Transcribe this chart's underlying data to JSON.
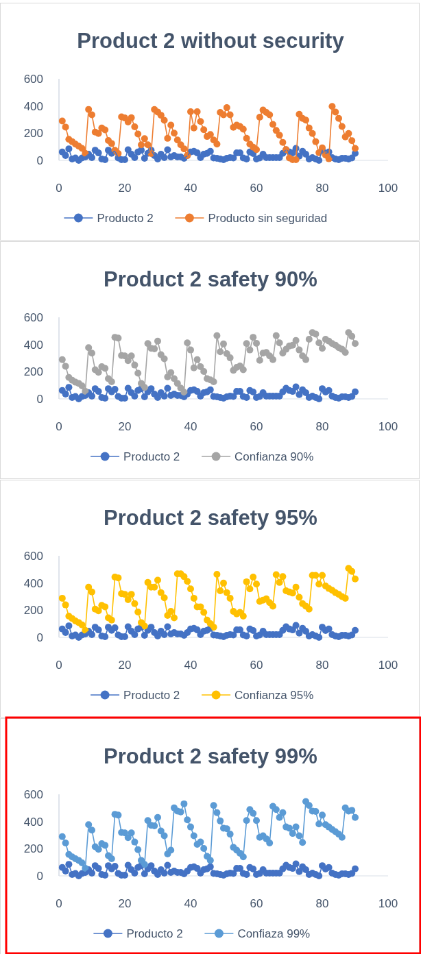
{
  "chart_data": [
    {
      "type": "line",
      "title": "Product 2 without security",
      "x": [
        1,
        2,
        3,
        4,
        5,
        6,
        7,
        8,
        9,
        10,
        11,
        12,
        13,
        14,
        15,
        16,
        17,
        18,
        19,
        20,
        21,
        22,
        23,
        24,
        25,
        26,
        27,
        28,
        29,
        30,
        31,
        32,
        33,
        34,
        35,
        36,
        37,
        38,
        39,
        40,
        41,
        42,
        43,
        44,
        45,
        46,
        47,
        48,
        49,
        50,
        51,
        52,
        53,
        54,
        55,
        56,
        57,
        58,
        59,
        60,
        61,
        62,
        63,
        64,
        65,
        66,
        67,
        68,
        69,
        70,
        71,
        72,
        73,
        74,
        75,
        76,
        77,
        78,
        79,
        80,
        81,
        82,
        83,
        84,
        85,
        86,
        87,
        88,
        89,
        90
      ],
      "xlim": [
        0,
        100
      ],
      "xticks": [
        0,
        20,
        40,
        60,
        80,
        100
      ],
      "ylim": [
        0,
        600
      ],
      "yticks": [
        0,
        200,
        400,
        600
      ],
      "marker": "circle",
      "legend": "bottom",
      "grid": false,
      "series": [
        {
          "name": "Producto 2",
          "color": "#4472c4",
          "values": [
            62,
            35,
            85,
            10,
            18,
            0,
            18,
            25,
            45,
            20,
            75,
            55,
            10,
            5,
            75,
            52,
            70,
            18,
            5,
            5,
            78,
            45,
            20,
            62,
            75,
            15,
            52,
            75,
            35,
            10,
            45,
            20,
            78,
            25,
            35,
            25,
            25,
            15,
            35,
            62,
            67,
            55,
            20,
            45,
            52,
            67,
            18,
            15,
            10,
            5,
            15,
            20,
            18,
            55,
            55,
            18,
            10,
            62,
            50,
            10,
            18,
            45,
            20,
            20,
            20,
            20,
            20,
            52,
            78,
            62,
            55,
            88,
            32,
            67,
            45,
            10,
            20,
            10,
            0,
            75,
            50,
            62,
            20,
            10,
            5,
            15,
            15,
            10,
            18,
            52
          ]
        },
        {
          "name": "Producto sin seguridad",
          "color": "#ed7d31",
          "values": [
            290,
            245,
            155,
            138,
            120,
            105,
            88,
            52,
            375,
            335,
            208,
            198,
            238,
            224,
            146,
            124,
            74,
            50,
            320,
            312,
            282,
            314,
            247,
            194,
            115,
            160,
            115,
            50,
            374,
            356,
            332,
            295,
            162,
            260,
            200,
            150,
            115,
            85,
            35,
            358,
            238,
            358,
            286,
            226,
            176,
            190,
            150,
            120,
            353,
            335,
            388,
            335,
            243,
            260,
            250,
            229,
            162,
            120,
            97,
            79,
            318,
            370,
            353,
            335,
            265,
            220,
            185,
            132,
            79,
            18,
            5,
            5,
            339,
            309,
            296,
            238,
            198,
            138,
            57,
            92,
            39,
            12,
            397,
            356,
            309,
            250,
            173,
            198,
            145,
            88
          ]
        }
      ]
    },
    {
      "type": "line",
      "title": "Product 2 safety 90%",
      "x": [
        1,
        2,
        3,
        4,
        5,
        6,
        7,
        8,
        9,
        10,
        11,
        12,
        13,
        14,
        15,
        16,
        17,
        18,
        19,
        20,
        21,
        22,
        23,
        24,
        25,
        26,
        27,
        28,
        29,
        30,
        31,
        32,
        33,
        34,
        35,
        36,
        37,
        38,
        39,
        40,
        41,
        42,
        43,
        44,
        45,
        46,
        47,
        48,
        49,
        50,
        51,
        52,
        53,
        54,
        55,
        56,
        57,
        58,
        59,
        60,
        61,
        62,
        63,
        64,
        65,
        66,
        67,
        68,
        69,
        70,
        71,
        72,
        73,
        74,
        75,
        76,
        77,
        78,
        79,
        80,
        81,
        82,
        83,
        84,
        85,
        86,
        87,
        88,
        89,
        90
      ],
      "xlim": [
        0,
        100
      ],
      "xticks": [
        0,
        20,
        40,
        60,
        80,
        100
      ],
      "ylim": [
        0,
        600
      ],
      "yticks": [
        0,
        200,
        400,
        600
      ],
      "marker": "circle",
      "legend": "bottom",
      "grid": false,
      "series": [
        {
          "name": "Producto 2",
          "color": "#4472c4",
          "values": [
            62,
            35,
            85,
            10,
            18,
            0,
            18,
            25,
            45,
            20,
            75,
            55,
            10,
            5,
            75,
            52,
            70,
            18,
            5,
            5,
            78,
            45,
            20,
            62,
            75,
            15,
            52,
            75,
            35,
            10,
            45,
            20,
            78,
            25,
            35,
            25,
            25,
            15,
            35,
            62,
            67,
            55,
            20,
            45,
            52,
            67,
            18,
            15,
            10,
            5,
            15,
            20,
            18,
            55,
            55,
            18,
            10,
            62,
            50,
            10,
            18,
            45,
            20,
            20,
            20,
            20,
            20,
            52,
            78,
            62,
            55,
            88,
            32,
            67,
            45,
            10,
            20,
            10,
            0,
            75,
            50,
            62,
            20,
            10,
            5,
            15,
            15,
            10,
            18,
            52
          ]
        },
        {
          "name": "Confianza 90%",
          "color": "#a5a5a5",
          "values": [
            289,
            240,
            158,
            137,
            123,
            114,
            96,
            56,
            377,
            337,
            214,
            196,
            237,
            225,
            149,
            126,
            453,
            447,
            319,
            316,
            281,
            316,
            249,
            189,
            114,
            84,
            407,
            372,
            368,
            425,
            325,
            295,
            161,
            193,
            149,
            114,
            79,
            49,
            412,
            360,
            228,
            289,
            237,
            202,
            149,
            140,
            126,
            465,
            347,
            404,
            333,
            302,
            210,
            232,
            242,
            214,
            407,
            360,
            453,
            409,
            284,
            337,
            342,
            316,
            289,
            465,
            412,
            337,
            365,
            389,
            395,
            430,
            360,
            316,
            289,
            439,
            488,
            477,
            412,
            372,
            439,
            425,
            407,
            395,
            377,
            365,
            342,
            488,
            460,
            407
          ]
        }
      ]
    },
    {
      "type": "line",
      "title": "Product 2 safety 95%",
      "x": [
        1,
        2,
        3,
        4,
        5,
        6,
        7,
        8,
        9,
        10,
        11,
        12,
        13,
        14,
        15,
        16,
        17,
        18,
        19,
        20,
        21,
        22,
        23,
        24,
        25,
        26,
        27,
        28,
        29,
        30,
        31,
        32,
        33,
        34,
        35,
        36,
        37,
        38,
        39,
        40,
        41,
        42,
        43,
        44,
        45,
        46,
        47,
        48,
        49,
        50,
        51,
        52,
        53,
        54,
        55,
        56,
        57,
        58,
        59,
        60,
        61,
        62,
        63,
        64,
        65,
        66,
        67,
        68,
        69,
        70,
        71,
        72,
        73,
        74,
        75,
        76,
        77,
        78,
        79,
        80,
        81,
        82,
        83,
        84,
        85,
        86,
        87,
        88,
        89,
        90
      ],
      "xlim": [
        0,
        100
      ],
      "xticks": [
        0,
        20,
        40,
        60,
        80,
        100
      ],
      "ylim": [
        0,
        600
      ],
      "yticks": [
        0,
        200,
        400,
        600
      ],
      "marker": "circle",
      "legend": "bottom",
      "grid": false,
      "series": [
        {
          "name": "Producto 2",
          "color": "#4472c4",
          "values": [
            62,
            35,
            85,
            10,
            18,
            0,
            18,
            25,
            45,
            20,
            75,
            55,
            10,
            5,
            75,
            52,
            70,
            18,
            5,
            5,
            78,
            45,
            20,
            62,
            75,
            15,
            52,
            75,
            35,
            10,
            45,
            20,
            78,
            25,
            35,
            25,
            25,
            15,
            35,
            62,
            67,
            55,
            20,
            45,
            52,
            67,
            18,
            15,
            10,
            5,
            15,
            20,
            18,
            55,
            55,
            18,
            10,
            62,
            50,
            10,
            18,
            45,
            20,
            20,
            20,
            20,
            20,
            52,
            78,
            62,
            55,
            88,
            32,
            67,
            45,
            10,
            20,
            10,
            0,
            75,
            50,
            62,
            20,
            10,
            5,
            15,
            15,
            10,
            18,
            52
          ]
        },
        {
          "name": "Confianza 95%",
          "color": "#ffc000",
          "values": [
            288,
            239,
            156,
            139,
            121,
            109,
            92,
            52,
            369,
            334,
            208,
            196,
            236,
            225,
            144,
            127,
            444,
            438,
            322,
            317,
            277,
            317,
            248,
            187,
            109,
            83,
            404,
            369,
            369,
            421,
            329,
            291,
            161,
            191,
            144,
            468,
            468,
            447,
            412,
            357,
            288,
            225,
            225,
            184,
            127,
            101,
            75,
            464,
            343,
            399,
            329,
            288,
            191,
            173,
            184,
            156,
            409,
            357,
            444,
            392,
            265,
            274,
            283,
            256,
            230,
            461,
            404,
            447,
            343,
            334,
            326,
            369,
            295,
            248,
            230,
            208,
            456,
            456,
            392,
            456,
            378,
            360,
            347,
            329,
            317,
            300,
            288,
            508,
            485,
            430
          ]
        }
      ]
    },
    {
      "type": "line",
      "title": "Product 2 safety 99%",
      "x": [
        1,
        2,
        3,
        4,
        5,
        6,
        7,
        8,
        9,
        10,
        11,
        12,
        13,
        14,
        15,
        16,
        17,
        18,
        19,
        20,
        21,
        22,
        23,
        24,
        25,
        26,
        27,
        28,
        29,
        30,
        31,
        32,
        33,
        34,
        35,
        36,
        37,
        38,
        39,
        40,
        41,
        42,
        43,
        44,
        45,
        46,
        47,
        48,
        49,
        50,
        51,
        52,
        53,
        54,
        55,
        56,
        57,
        58,
        59,
        60,
        61,
        62,
        63,
        64,
        65,
        66,
        67,
        68,
        69,
        70,
        71,
        72,
        73,
        74,
        75,
        76,
        77,
        78,
        79,
        80,
        81,
        82,
        83,
        84,
        85,
        86,
        87,
        88,
        89,
        90
      ],
      "xlim": [
        0,
        100
      ],
      "xticks": [
        0,
        20,
        40,
        60,
        80,
        100
      ],
      "ylim": [
        0,
        600
      ],
      "yticks": [
        0,
        200,
        400,
        600
      ],
      "marker": "circle",
      "legend": "bottom",
      "grid": false,
      "series": [
        {
          "name": "Producto 2",
          "color": "#4472c4",
          "values": [
            62,
            35,
            85,
            10,
            18,
            0,
            18,
            25,
            45,
            20,
            75,
            55,
            10,
            5,
            75,
            52,
            70,
            18,
            5,
            5,
            78,
            45,
            20,
            62,
            75,
            15,
            52,
            75,
            35,
            10,
            45,
            20,
            78,
            25,
            35,
            25,
            25,
            15,
            35,
            62,
            67,
            55,
            20,
            45,
            52,
            67,
            18,
            15,
            10,
            5,
            15,
            20,
            18,
            55,
            55,
            18,
            10,
            62,
            50,
            10,
            18,
            45,
            20,
            20,
            20,
            20,
            20,
            52,
            78,
            62,
            55,
            88,
            32,
            67,
            45,
            10,
            20,
            10,
            0,
            75,
            50,
            62,
            20,
            10,
            5,
            15,
            15,
            10,
            18,
            52
          ]
        },
        {
          "name": "Confiaza 99%",
          "color": "#5b9bd5",
          "values": [
            289,
            242,
            158,
            140,
            126,
            114,
            96,
            56,
            377,
            337,
            214,
            196,
            237,
            225,
            149,
            126,
            453,
            447,
            319,
            316,
            281,
            316,
            249,
            193,
            114,
            84,
            407,
            372,
            368,
            430,
            330,
            295,
            161,
            189,
            500,
            477,
            470,
            530,
            412,
            360,
            295,
            232,
            249,
            202,
            144,
            114,
            518,
            465,
            404,
            351,
            347,
            307,
            210,
            189,
            167,
            140,
            407,
            488,
            460,
            407,
            284,
            295,
            272,
            242,
            512,
            488,
            430,
            465,
            360,
            351,
            312,
            360,
            295,
            246,
            547,
            518,
            477,
            474,
            382,
            447,
            377,
            360,
            342,
            325,
            307,
            284,
            500,
            477,
            482,
            430
          ]
        }
      ]
    }
  ]
}
